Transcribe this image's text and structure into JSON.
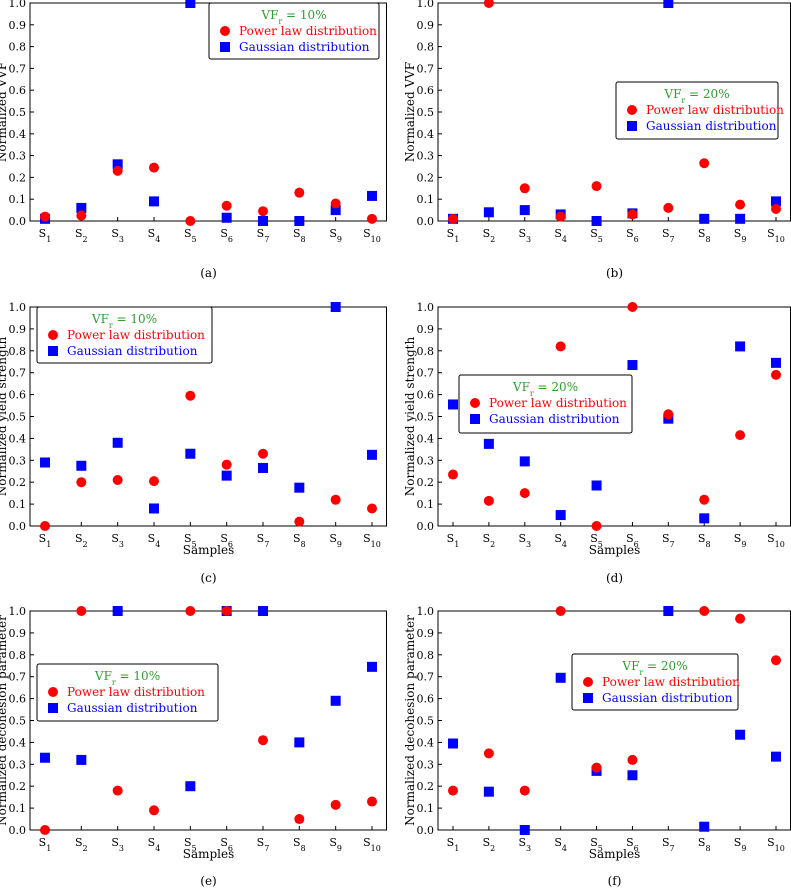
{
  "legend": {
    "series": [
      {
        "name": "Power law distribution",
        "color": "#ff0000",
        "marker": "circle"
      },
      {
        "name": "Gaussian distribution",
        "color": "#0000ff",
        "marker": "square"
      }
    ],
    "title_color": "#2e9e2e"
  },
  "chart_data": [
    {
      "type": "scatter",
      "panel": "a",
      "caption": "(a)",
      "xlabel": "",
      "ylabel": "Normalized VVF",
      "categories": [
        "S1",
        "S2",
        "S3",
        "S4",
        "S5",
        "S6",
        "S7",
        "S8",
        "S9",
        "S10"
      ],
      "legend_title": "VFr = 10%",
      "legend_position": "top-right",
      "ylim": [
        0,
        1.0
      ],
      "yticks": [
        "0.0",
        "0.1",
        "0.2",
        "0.3",
        "0.4",
        "0.5",
        "0.6",
        "0.7",
        "0.8",
        "0.9",
        "1.0"
      ],
      "series": [
        {
          "name": "Power law distribution",
          "values": [
            0.02,
            0.025,
            0.23,
            0.245,
            0.0,
            0.07,
            0.045,
            0.13,
            0.08,
            0.01
          ]
        },
        {
          "name": "Gaussian distribution",
          "values": [
            0.01,
            0.06,
            0.26,
            0.09,
            1.0,
            0.015,
            0.0,
            0.0,
            0.05,
            0.115
          ]
        }
      ]
    },
    {
      "type": "scatter",
      "panel": "b",
      "caption": "(b)",
      "xlabel": "",
      "ylabel": "Normalized VVF",
      "categories": [
        "S1",
        "S2",
        "S3",
        "S4",
        "S5",
        "S6",
        "S7",
        "S8",
        "S9",
        "S10"
      ],
      "legend_title": "VFr = 20%",
      "legend_position": "center-right",
      "ylim": [
        0,
        1.0
      ],
      "yticks": [
        "0.0",
        "0.1",
        "0.2",
        "0.3",
        "0.4",
        "0.5",
        "0.6",
        "0.7",
        "0.8",
        "0.9",
        "1.0"
      ],
      "series": [
        {
          "name": "Power law distribution",
          "values": [
            0.01,
            1.0,
            0.15,
            0.02,
            0.16,
            0.03,
            0.06,
            0.265,
            0.075,
            0.055
          ]
        },
        {
          "name": "Gaussian distribution",
          "values": [
            0.01,
            0.04,
            0.05,
            0.03,
            0.0,
            0.035,
            1.0,
            0.01,
            0.01,
            0.09
          ]
        }
      ]
    },
    {
      "type": "scatter",
      "panel": "c",
      "caption": "(c)",
      "xlabel": "Samples",
      "ylabel": "Normalized yield strength",
      "categories": [
        "S1",
        "S2",
        "S3",
        "S4",
        "S5",
        "S6",
        "S7",
        "S8",
        "S9",
        "S10"
      ],
      "legend_title": "VFr = 10%",
      "legend_position": "top-left",
      "ylim": [
        0,
        1.0
      ],
      "yticks": [
        "0.0",
        "0.1",
        "0.2",
        "0.3",
        "0.4",
        "0.5",
        "0.6",
        "0.7",
        "0.8",
        "0.9",
        "1.0"
      ],
      "series": [
        {
          "name": "Power law distribution",
          "values": [
            0.0,
            0.2,
            0.21,
            0.205,
            0.595,
            0.28,
            0.33,
            0.02,
            0.12,
            0.08
          ]
        },
        {
          "name": "Gaussian distribution",
          "values": [
            0.29,
            0.275,
            0.38,
            0.08,
            0.33,
            0.23,
            0.265,
            0.175,
            1.0,
            0.325
          ]
        }
      ]
    },
    {
      "type": "scatter",
      "panel": "d",
      "caption": "(d)",
      "xlabel": "Samples",
      "ylabel": "Normalized yield strength",
      "categories": [
        "S1",
        "S2",
        "S3",
        "S4",
        "S5",
        "S6",
        "S7",
        "S8",
        "S9",
        "S10"
      ],
      "legend_title": "VFr = 20%",
      "legend_position": "center-left",
      "ylim": [
        0,
        1.0
      ],
      "yticks": [
        "0.0",
        "0.1",
        "0.2",
        "0.3",
        "0.4",
        "0.5",
        "0.6",
        "0.7",
        "0.8",
        "0.9",
        "1.0"
      ],
      "series": [
        {
          "name": "Power law distribution",
          "values": [
            0.235,
            0.115,
            0.15,
            0.82,
            0.0,
            1.0,
            0.51,
            0.12,
            0.415,
            0.69
          ]
        },
        {
          "name": "Gaussian distribution",
          "values": [
            0.555,
            0.375,
            0.295,
            0.05,
            0.185,
            0.735,
            0.49,
            0.035,
            0.82,
            0.745
          ]
        }
      ]
    },
    {
      "type": "scatter",
      "panel": "e",
      "caption": "(e)",
      "xlabel": "Samples",
      "ylabel": "Normalized decohesion parameter",
      "categories": [
        "S1",
        "S2",
        "S3",
        "S4",
        "S5",
        "S6",
        "S7",
        "S8",
        "S9",
        "S10"
      ],
      "legend_title": "VFr = 10%",
      "legend_position": "center-left",
      "ylim": [
        0,
        1.0
      ],
      "yticks": [
        "0.0",
        "0.1",
        "0.2",
        "0.3",
        "0.4",
        "0.5",
        "0.6",
        "0.7",
        "0.8",
        "0.9",
        "1.0"
      ],
      "series": [
        {
          "name": "Power law distribution",
          "values": [
            0.0,
            1.0,
            0.18,
            0.09,
            1.0,
            1.0,
            0.41,
            0.05,
            0.115,
            0.13
          ]
        },
        {
          "name": "Gaussian distribution",
          "values": [
            0.33,
            0.32,
            1.0,
            null,
            0.2,
            1.0,
            1.0,
            0.4,
            0.59,
            0.745
          ]
        }
      ]
    },
    {
      "type": "scatter",
      "panel": "f",
      "caption": "(f)",
      "xlabel": "Samples",
      "ylabel": "Normalized decohesion parameter",
      "categories": [
        "S1",
        "S2",
        "S3",
        "S4",
        "S5",
        "S6",
        "S7",
        "S8",
        "S9",
        "S10"
      ],
      "legend_title": "VFr = 20%",
      "legend_position": "center-right",
      "ylim": [
        0,
        1.0
      ],
      "yticks": [
        "0.0",
        "0.1",
        "0.2",
        "0.3",
        "0.4",
        "0.5",
        "0.6",
        "0.7",
        "0.8",
        "0.9",
        "1.0"
      ],
      "series": [
        {
          "name": "Power law distribution",
          "values": [
            0.18,
            0.35,
            0.18,
            1.0,
            0.285,
            0.32,
            0.77,
            1.0,
            0.965,
            0.775
          ]
        },
        {
          "name": "Gaussian distribution",
          "values": [
            0.395,
            0.175,
            0.0,
            0.695,
            0.27,
            0.25,
            1.0,
            0.015,
            0.435,
            0.335
          ]
        }
      ]
    }
  ]
}
